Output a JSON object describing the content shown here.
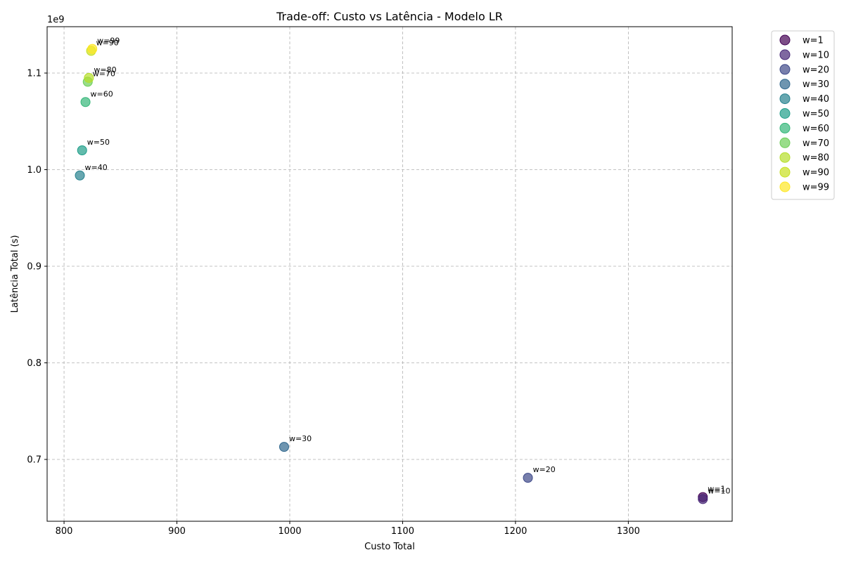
{
  "chart_data": {
    "type": "scatter",
    "title": "Trade-off: Custo vs Latência - Modelo LR",
    "xlabel": "Custo Total",
    "ylabel": "Latência Total (s)",
    "y_offset_label": "1e9",
    "xlim": [
      785,
      1392
    ],
    "ylim": [
      0.636,
      1.148
    ],
    "x_ticks": [
      800,
      900,
      1000,
      1100,
      1200,
      1300
    ],
    "y_ticks": [
      0.7,
      0.8,
      0.9,
      1.0,
      1.1
    ],
    "y_tick_labels": [
      "0.7",
      "0.8",
      "0.9",
      "1.0",
      "1.1"
    ],
    "grid": true,
    "legend_position": "outside-top-right",
    "series": [
      {
        "name": "w=1",
        "label": "w=1",
        "color": "#440154",
        "x": 1366,
        "y": 0.661
      },
      {
        "name": "w=10",
        "label": "w=10",
        "color": "#482878",
        "x": 1366,
        "y": 0.659
      },
      {
        "name": "w=20",
        "label": "w=20",
        "color": "#3e4989",
        "x": 1211,
        "y": 0.681
      },
      {
        "name": "w=30",
        "label": "w=30",
        "color": "#31688e",
        "x": 995,
        "y": 0.713
      },
      {
        "name": "w=40",
        "label": "w=40",
        "color": "#26828e",
        "x": 814,
        "y": 0.994
      },
      {
        "name": "w=50",
        "label": "w=50",
        "color": "#1f9e89",
        "x": 816,
        "y": 1.02
      },
      {
        "name": "w=60",
        "label": "w=60",
        "color": "#35b779",
        "x": 819,
        "y": 1.07
      },
      {
        "name": "w=70",
        "label": "w=70",
        "color": "#6ece58",
        "x": 821,
        "y": 1.091
      },
      {
        "name": "w=80",
        "label": "w=80",
        "color": "#b5de2b",
        "x": 822,
        "y": 1.095
      },
      {
        "name": "w=90",
        "label": "w=90",
        "color": "#c8e020",
        "x": 824,
        "y": 1.123
      },
      {
        "name": "w=99",
        "label": "w=99",
        "color": "#fde725",
        "x": 825,
        "y": 1.125
      }
    ]
  }
}
